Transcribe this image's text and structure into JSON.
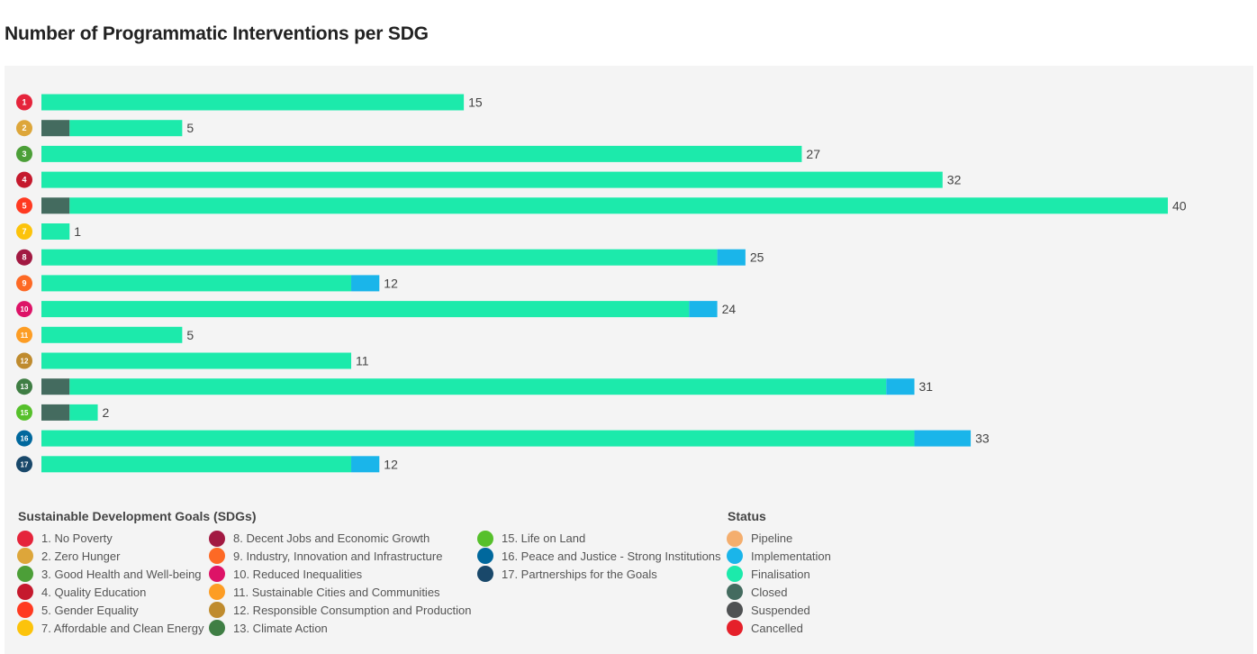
{
  "title": "Number of Programmatic Interventions per SDG",
  "chart_data": {
    "type": "bar",
    "orientation": "horizontal",
    "stacked": true,
    "categories": [
      "1",
      "2",
      "3",
      "4",
      "5",
      "7",
      "8",
      "9",
      "10",
      "11",
      "12",
      "13",
      "15",
      "16",
      "17"
    ],
    "category_colors": [
      "#e5243b",
      "#dda63a",
      "#4c9f38",
      "#c5192d",
      "#ff3a21",
      "#fcc30b",
      "#a21942",
      "#fd6925",
      "#dd1367",
      "#fd9d24",
      "#bf8b2e",
      "#3f7e44",
      "#56c02b",
      "#00689d",
      "#19486a"
    ],
    "series": [
      {
        "name": "Closed",
        "color": "#446b5f",
        "values": [
          0,
          1,
          0,
          0,
          1,
          0,
          0,
          0,
          0,
          0,
          0,
          1,
          1,
          0,
          0
        ]
      },
      {
        "name": "Finalisation",
        "color": "#1ceaab",
        "values": [
          15,
          4,
          27,
          32,
          39,
          1,
          24,
          11,
          23,
          5,
          11,
          29,
          1,
          31,
          11
        ]
      },
      {
        "name": "Implementation",
        "color": "#1ab5ea",
        "values": [
          0,
          0,
          0,
          0,
          0,
          0,
          1,
          1,
          1,
          0,
          0,
          1,
          0,
          2,
          1
        ]
      }
    ],
    "totals": [
      15,
      5,
      27,
      32,
      40,
      1,
      25,
      12,
      24,
      5,
      11,
      31,
      2,
      33,
      12
    ],
    "xlim": [
      0,
      40
    ],
    "grid": false,
    "legend_position": "bottom"
  },
  "legend": {
    "sdg_title": "Sustainable Development Goals (SDGs)",
    "sdg_items": [
      {
        "label": "1. No Poverty",
        "color": "#e5243b"
      },
      {
        "label": "2. Zero Hunger",
        "color": "#dda63a"
      },
      {
        "label": "3. Good Health and Well-being",
        "color": "#4c9f38"
      },
      {
        "label": "4. Quality Education",
        "color": "#c5192d"
      },
      {
        "label": "5. Gender Equality",
        "color": "#ff3a21"
      },
      {
        "label": "7. Affordable and Clean Energy",
        "color": "#fcc30b"
      },
      {
        "label": "8. Decent Jobs and Economic Growth",
        "color": "#a21942"
      },
      {
        "label": "9. Industry, Innovation and Infrastructure",
        "color": "#fd6925"
      },
      {
        "label": "10. Reduced Inequalities",
        "color": "#dd1367"
      },
      {
        "label": "11. Sustainable Cities and Communities",
        "color": "#fd9d24"
      },
      {
        "label": "12. Responsible Consumption and Production",
        "color": "#bf8b2e"
      },
      {
        "label": "13. Climate Action",
        "color": "#3f7e44"
      },
      {
        "label": "15. Life on Land",
        "color": "#56c02b"
      },
      {
        "label": "16. Peace and Justice - Strong Institutions",
        "color": "#00689d"
      },
      {
        "label": "17. Partnerships for the Goals",
        "color": "#19486a"
      }
    ],
    "status_title": "Status",
    "status_items": [
      {
        "label": "Pipeline",
        "color": "#f4ae6e"
      },
      {
        "label": "Implementation",
        "color": "#1ab5ea"
      },
      {
        "label": "Finalisation",
        "color": "#1ceaab"
      },
      {
        "label": "Closed",
        "color": "#446b5f"
      },
      {
        "label": "Suspended",
        "color": "#4f5153"
      },
      {
        "label": "Cancelled",
        "color": "#e5202a"
      }
    ]
  }
}
